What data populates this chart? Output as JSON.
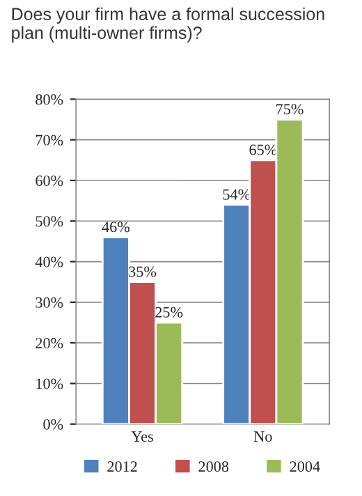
{
  "chart_data": {
    "type": "bar",
    "title": "Does your firm have a formal succession plan (multi-owner firms)?",
    "categories": [
      "Yes",
      "No"
    ],
    "series": [
      {
        "name": "2012",
        "color": "#4f81bd",
        "values": [
          46,
          54
        ],
        "value_labels": [
          "46%",
          "54%"
        ]
      },
      {
        "name": "2008",
        "color": "#c0504d",
        "values": [
          35,
          65
        ],
        "value_labels": [
          "35%",
          "65%"
        ]
      },
      {
        "name": "2004",
        "color": "#9bbb59",
        "values": [
          25,
          75
        ],
        "value_labels": [
          "25%",
          "75%"
        ]
      }
    ],
    "ylim": [
      0,
      80
    ],
    "yticks": [
      {
        "value": 0,
        "label": "0%"
      },
      {
        "value": 10,
        "label": "10%"
      },
      {
        "value": 20,
        "label": "20%"
      },
      {
        "value": 30,
        "label": "30%"
      },
      {
        "value": 40,
        "label": "40%"
      },
      {
        "value": 50,
        "label": "50%"
      },
      {
        "value": 60,
        "label": "60%"
      },
      {
        "value": 70,
        "label": "70%"
      },
      {
        "value": 80,
        "label": "80%"
      }
    ],
    "grid": "y",
    "legend": "bottom"
  }
}
